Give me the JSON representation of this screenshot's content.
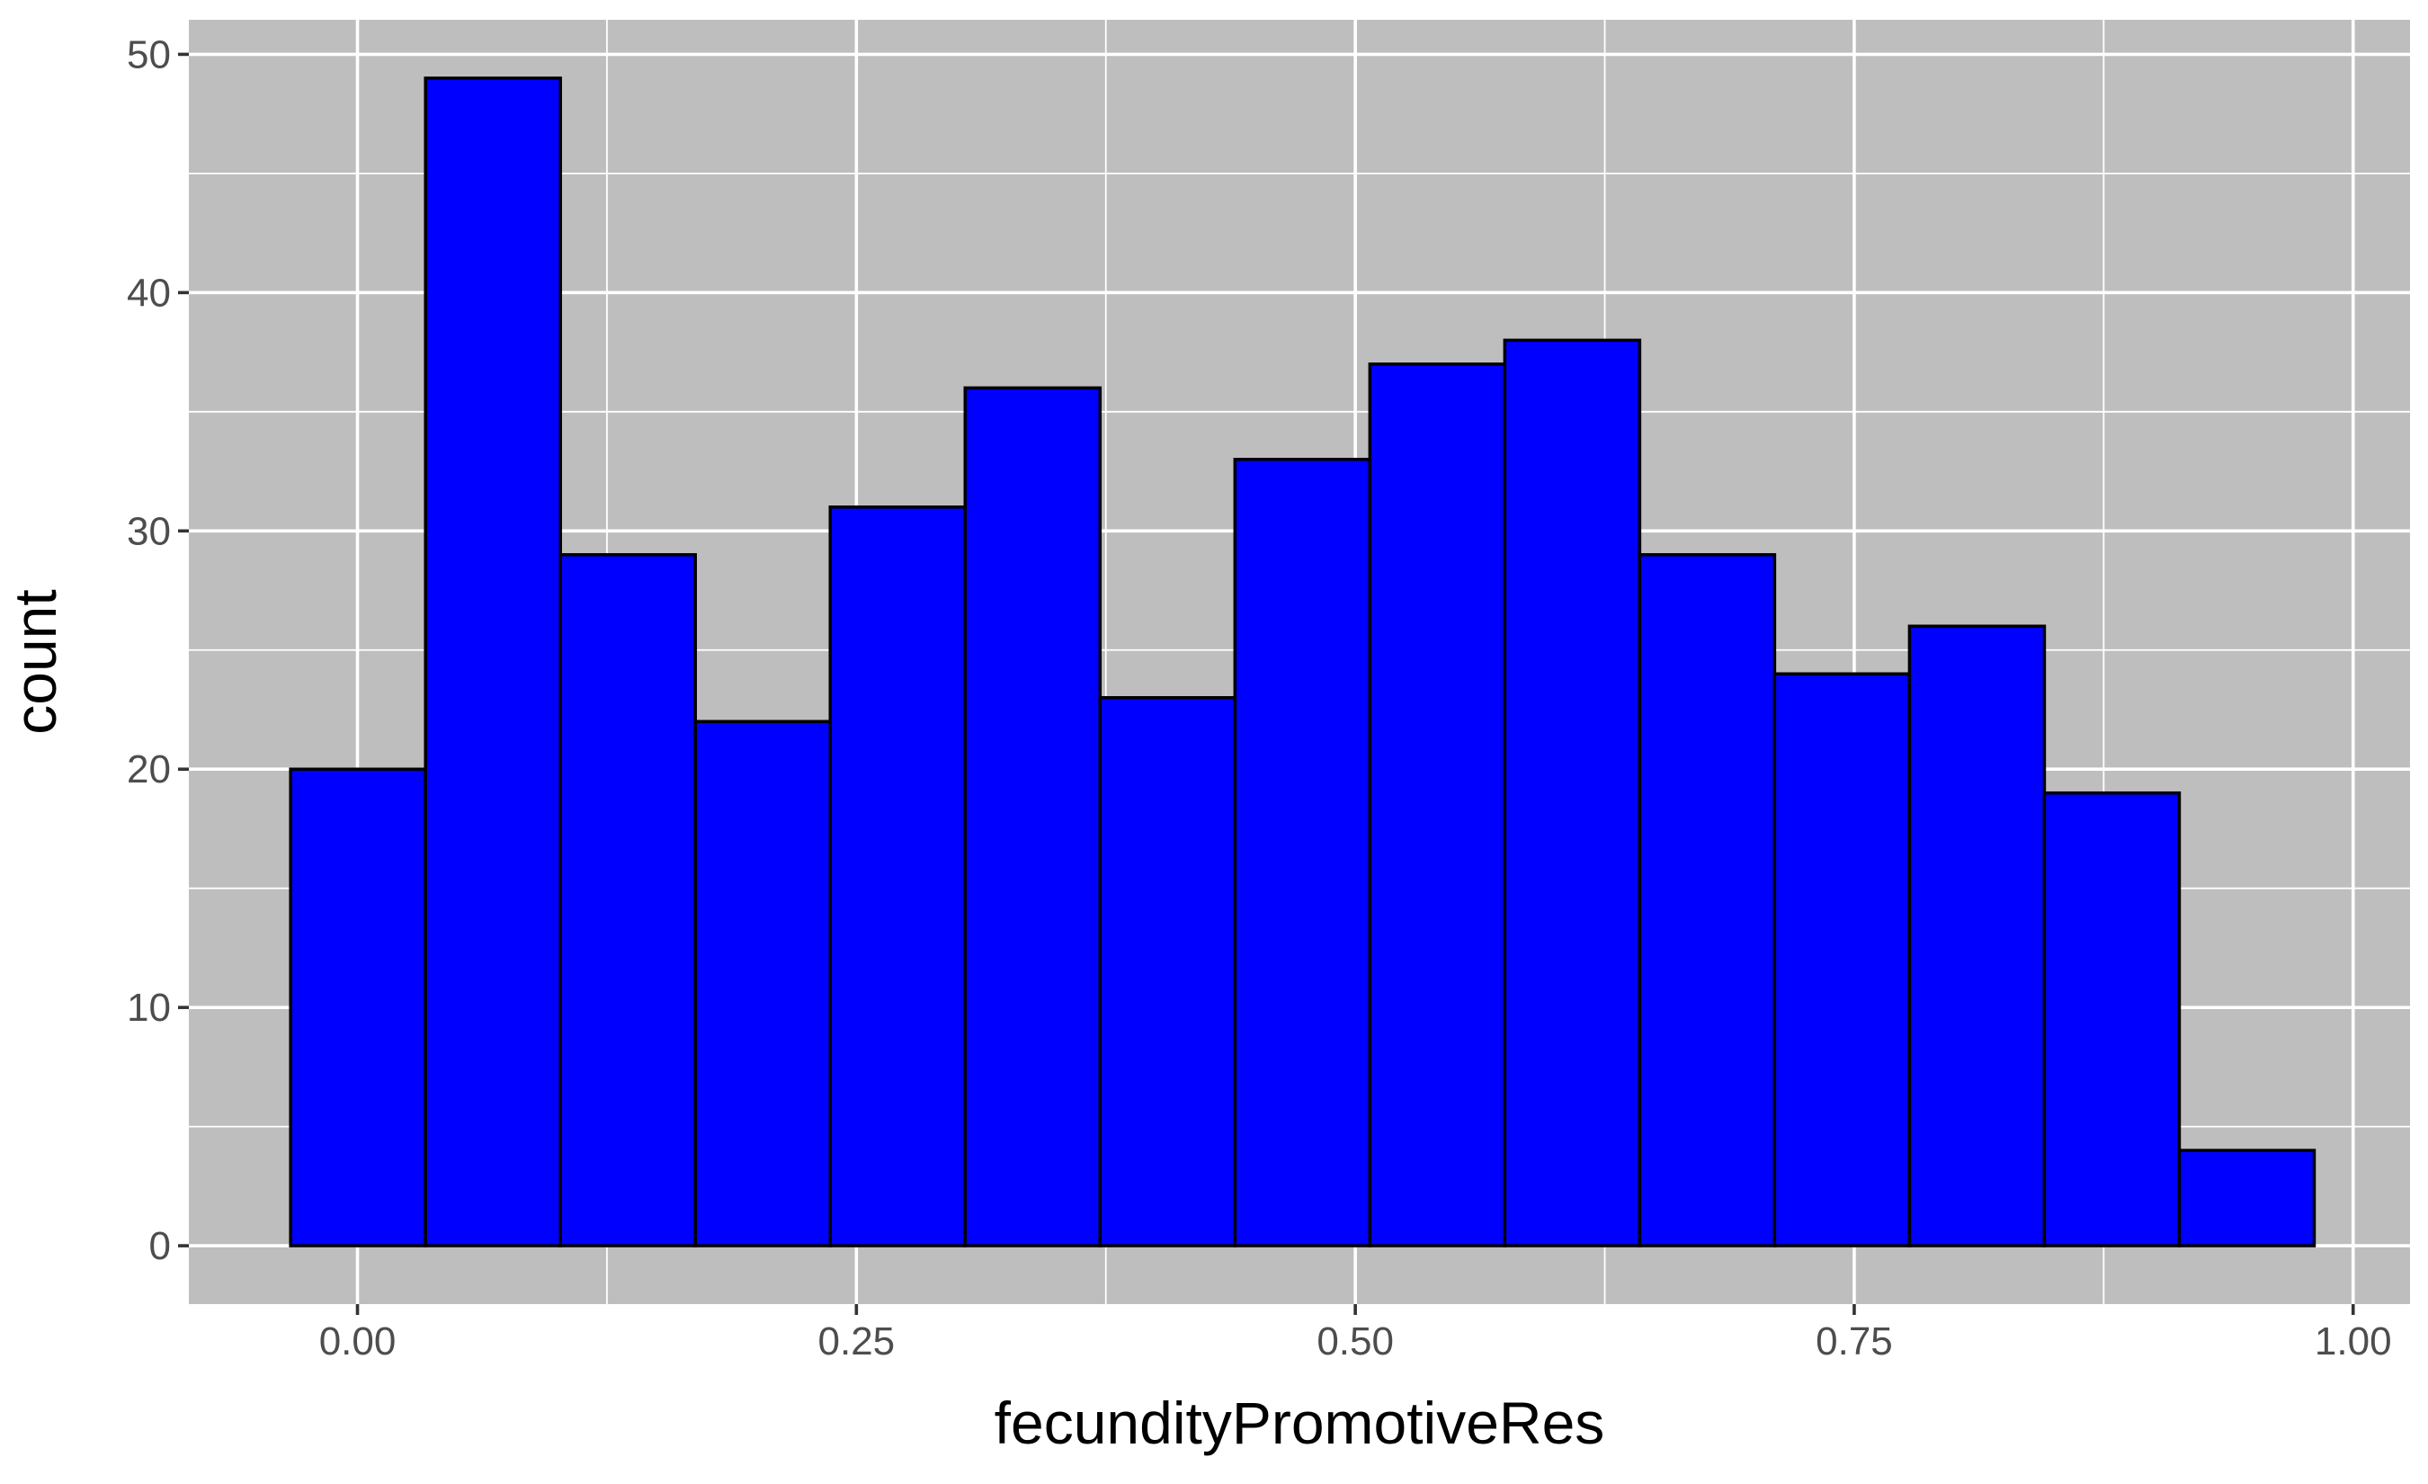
{
  "chart_data": {
    "type": "bar",
    "subtype": "histogram",
    "title": "",
    "xlabel": "fecundityPromotiveRes",
    "ylabel": "count",
    "bins": [
      {
        "x0": -0.0335,
        "x1": 0.0341,
        "count": 20
      },
      {
        "x0": 0.0341,
        "x1": 0.1017,
        "count": 49
      },
      {
        "x0": 0.1017,
        "x1": 0.1693,
        "count": 29
      },
      {
        "x0": 0.1693,
        "x1": 0.2369,
        "count": 22
      },
      {
        "x0": 0.2369,
        "x1": 0.3045,
        "count": 31
      },
      {
        "x0": 0.3045,
        "x1": 0.3721,
        "count": 36
      },
      {
        "x0": 0.3721,
        "x1": 0.4397,
        "count": 23
      },
      {
        "x0": 0.4397,
        "x1": 0.5073,
        "count": 33
      },
      {
        "x0": 0.5073,
        "x1": 0.5749,
        "count": 37
      },
      {
        "x0": 0.5749,
        "x1": 0.6425,
        "count": 38
      },
      {
        "x0": 0.6425,
        "x1": 0.7101,
        "count": 29
      },
      {
        "x0": 0.7101,
        "x1": 0.7777,
        "count": 24
      },
      {
        "x0": 0.7777,
        "x1": 0.8453,
        "count": 26
      },
      {
        "x0": 0.8453,
        "x1": 0.9129,
        "count": 19
      },
      {
        "x0": 0.9129,
        "x1": 0.9805,
        "count": 4
      }
    ],
    "xlim": [
      -0.0845,
      1.0285
    ],
    "ylim": [
      -2.45,
      51.45
    ],
    "x_ticks": [
      {
        "value": 0.0,
        "label": "0.00"
      },
      {
        "value": 0.25,
        "label": "0.25"
      },
      {
        "value": 0.5,
        "label": "0.50"
      },
      {
        "value": 0.75,
        "label": "0.75"
      },
      {
        "value": 1.0,
        "label": "1.00"
      }
    ],
    "y_ticks": [
      {
        "value": 0,
        "label": "0"
      },
      {
        "value": 10,
        "label": "10"
      },
      {
        "value": 20,
        "label": "20"
      },
      {
        "value": 30,
        "label": "30"
      },
      {
        "value": 40,
        "label": "40"
      },
      {
        "value": 50,
        "label": "50"
      }
    ],
    "grid": true,
    "legend": "none",
    "colors": {
      "panel_background": "#bebebe",
      "grid": "#ffffff",
      "bar_fill": "#0000ff",
      "bar_stroke": "#000000",
      "tick_text": "#4d4d4d",
      "tick_mark": "#333333",
      "axis_title": "#000000"
    }
  }
}
